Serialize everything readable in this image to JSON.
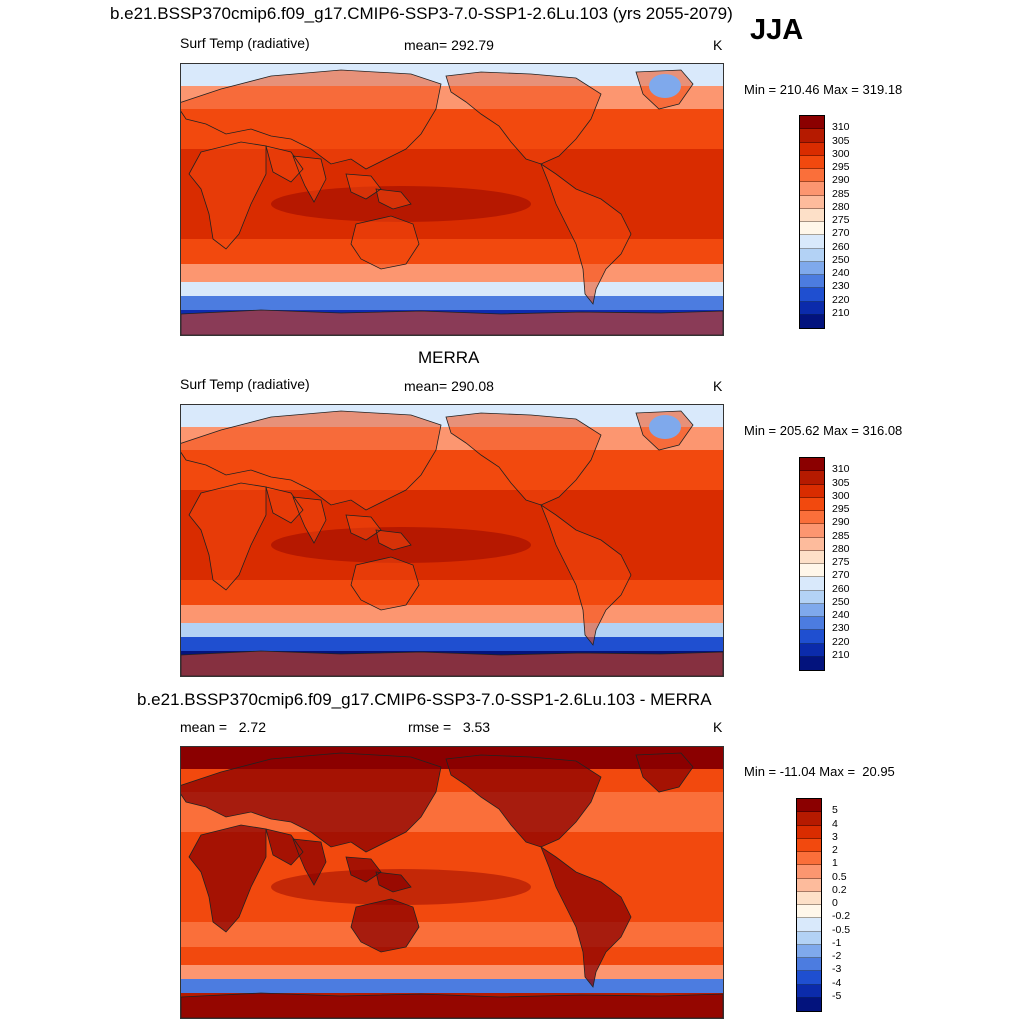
{
  "header": {
    "title": "b.e21.BSSP370cmip6.f09_g17.CMIP6-SSP3-7.0-SSP1-2.6Lu.103 (yrs 2055-2079)",
    "season": "JJA"
  },
  "panels": [
    {
      "id": "model",
      "title": "",
      "left_label": "Surf Temp (radiative)",
      "center_label": "mean= 292.79",
      "right_label": "K",
      "minmax": "Min = 210.46 Max = 319.18",
      "colorbar": {
        "levels": [
          "310",
          "305",
          "300",
          "295",
          "290",
          "285",
          "280",
          "275",
          "270",
          "260",
          "250",
          "240",
          "230",
          "220",
          "210"
        ],
        "colors": [
          "#8b0000",
          "#b51a00",
          "#d92c00",
          "#f2490e",
          "#fa6f3a",
          "#fc9670",
          "#fdbb9c",
          "#fde0c8",
          "#fff7ea",
          "#d9e9fb",
          "#b3d2f5",
          "#7fa9ec",
          "#4c7ce0",
          "#1f4fd0",
          "#0b2bab",
          "#03137d"
        ]
      },
      "map_colors": {
        "polar_south": "#0d2bb0",
        "south_mid": "#4c7ce0",
        "south_cool": "#d9e9fb",
        "temperate": "#fc9670",
        "warm": "#f2490e",
        "tropics": "#d92c00",
        "hot": "#8b0000",
        "arctic": "#d9e9fb"
      }
    },
    {
      "id": "obs",
      "title": "MERRA",
      "left_label": "Surf Temp (radiative)",
      "center_label": "mean= 290.08",
      "right_label": "K",
      "minmax": "Min = 205.62 Max = 316.08",
      "colorbar": {
        "levels": [
          "310",
          "305",
          "300",
          "295",
          "290",
          "285",
          "280",
          "275",
          "270",
          "260",
          "250",
          "240",
          "230",
          "220",
          "210"
        ],
        "colors": [
          "#8b0000",
          "#b51a00",
          "#d92c00",
          "#f2490e",
          "#fa6f3a",
          "#fc9670",
          "#fdbb9c",
          "#fde0c8",
          "#fff7ea",
          "#d9e9fb",
          "#b3d2f5",
          "#7fa9ec",
          "#4c7ce0",
          "#1f4fd0",
          "#0b2bab",
          "#03137d"
        ]
      },
      "map_colors": {
        "polar_south": "#03137d",
        "south_mid": "#1f4fd0",
        "south_cool": "#b3d2f5",
        "temperate": "#fc9670",
        "warm": "#f2490e",
        "tropics": "#d92c00",
        "hot": "#8b0000",
        "arctic": "#d9e9fb"
      }
    },
    {
      "id": "diff",
      "title": "b.e21.BSSP370cmip6.f09_g17.CMIP6-SSP3-7.0-SSP1-2.6Lu.103 - MERRA",
      "left_label": "mean =   2.72",
      "center_label": "rmse =   3.53",
      "right_label": "K",
      "minmax": "Min = -11.04 Max =  20.95",
      "colorbar": {
        "levels": [
          "5",
          "4",
          "3",
          "2",
          "1",
          "0.5",
          "0.2",
          "0",
          "-0.2",
          "-0.5",
          "-1",
          "-2",
          "-3",
          "-4",
          "-5"
        ],
        "colors": [
          "#8b0000",
          "#b51a00",
          "#d92c00",
          "#f2490e",
          "#fa6f3a",
          "#fc9670",
          "#fdbb9c",
          "#fde0c8",
          "#fff7ea",
          "#d9e9fb",
          "#b3d2f5",
          "#7fa9ec",
          "#4c7ce0",
          "#1f4fd0",
          "#0b2bab",
          "#03137d"
        ]
      },
      "map_colors": {
        "polar_south": "#b51a00",
        "south_mid": "#4c7ce0",
        "south_cool": "#fc9670",
        "temperate": "#f2490e",
        "warm": "#fa6f3a",
        "tropics": "#f2490e",
        "hot": "#8b0000",
        "arctic": "#8b0000"
      }
    }
  ]
}
